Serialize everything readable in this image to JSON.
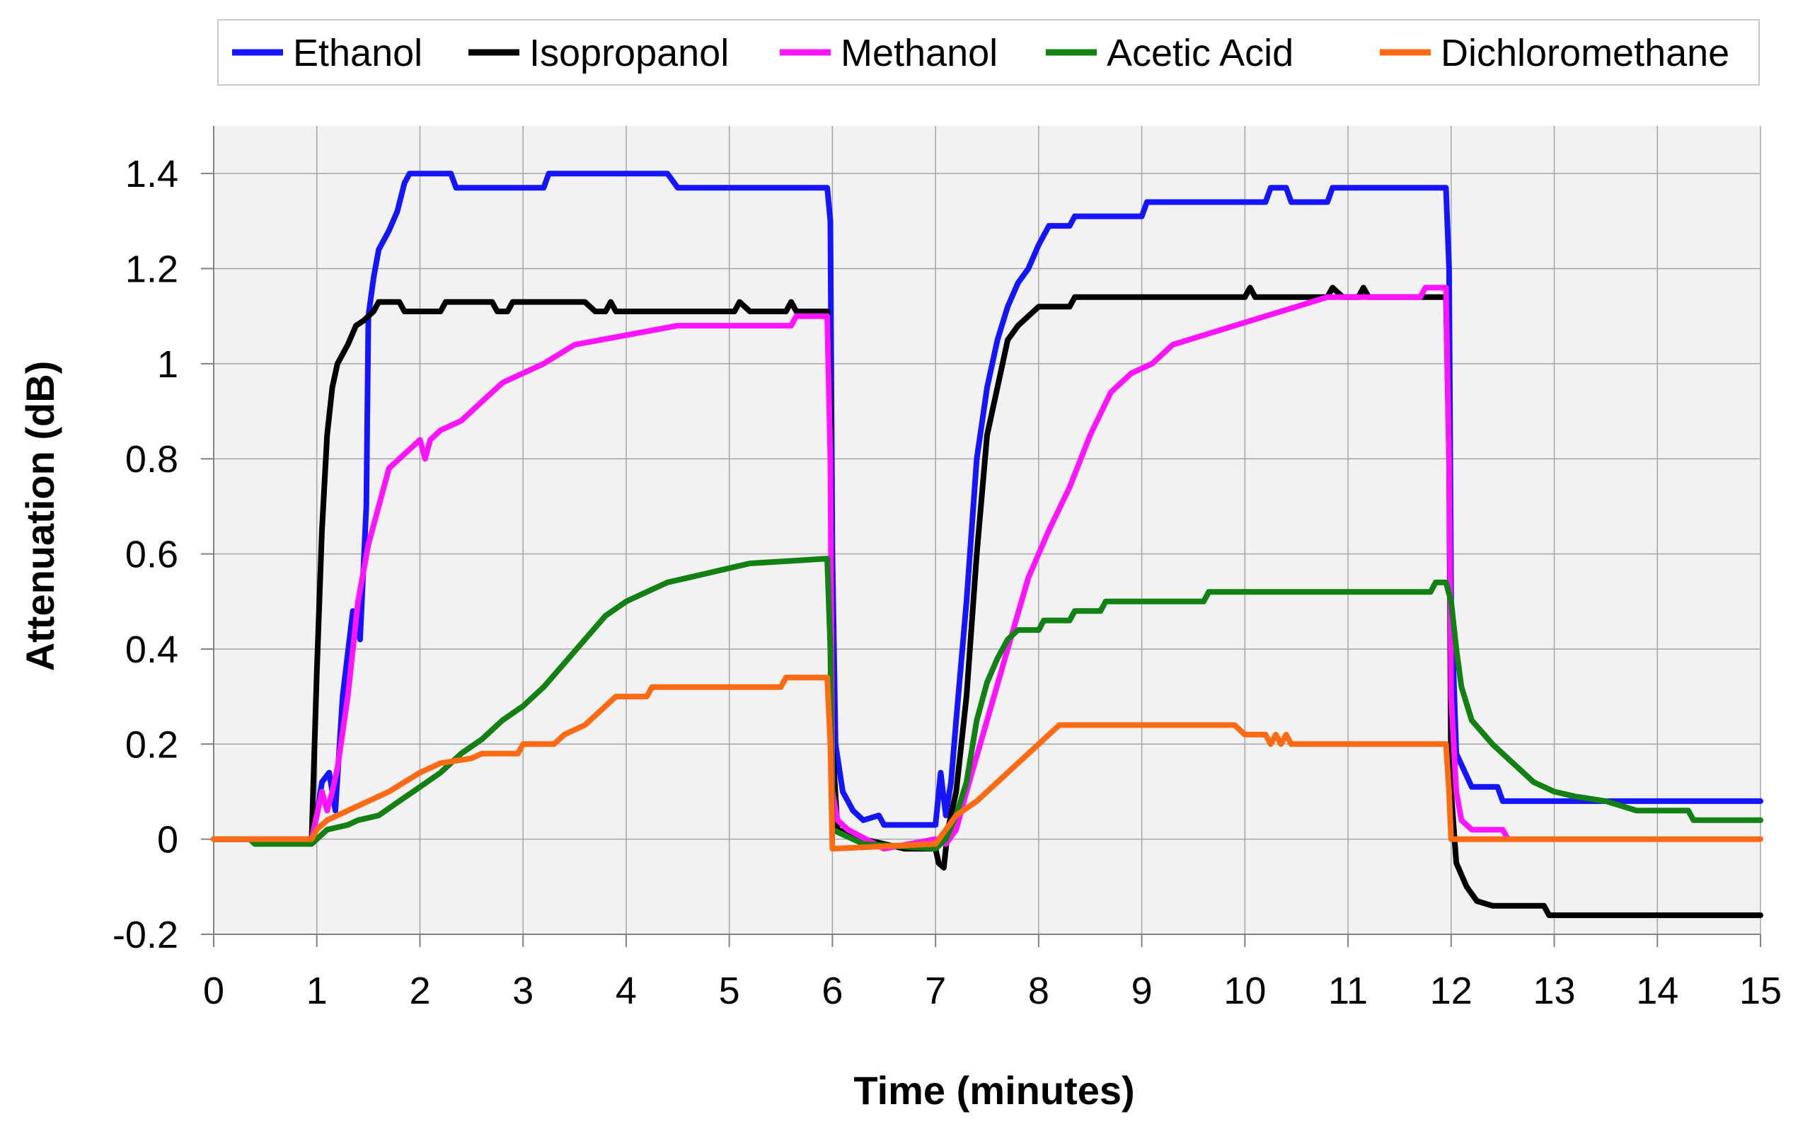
{
  "chart_data": {
    "type": "line",
    "title": "",
    "xlabel": "Time (minutes)",
    "ylabel": "Attenuation (dB)",
    "xlim": [
      0,
      15
    ],
    "ylim": [
      -0.2,
      1.5
    ],
    "x_ticks": [
      0,
      1,
      2,
      3,
      4,
      5,
      6,
      7,
      8,
      9,
      10,
      11,
      12,
      13,
      14,
      15
    ],
    "y_ticks": [
      -0.2,
      0,
      0.2,
      0.4,
      0.6,
      0.8,
      1,
      1.2,
      1.4
    ],
    "x_tick_labels": [
      "0",
      "1",
      "2",
      "3",
      "4",
      "5",
      "6",
      "7",
      "8",
      "9",
      "10",
      "11",
      "12",
      "13",
      "14",
      "15"
    ],
    "y_tick_labels": [
      "-0.2",
      "0",
      "0.2",
      "0.4",
      "0.6",
      "0.8",
      "1",
      "1.2",
      "1.4"
    ],
    "grid": true,
    "plot_background": "#f2f2f2",
    "legend_position": "top",
    "series": [
      {
        "name": "Ethanol",
        "color": "#1414ff",
        "points": [
          [
            0,
            0
          ],
          [
            0.95,
            0
          ],
          [
            1.0,
            0.05
          ],
          [
            1.05,
            0.12
          ],
          [
            1.12,
            0.14
          ],
          [
            1.18,
            0.06
          ],
          [
            1.25,
            0.3
          ],
          [
            1.35,
            0.48
          ],
          [
            1.42,
            0.42
          ],
          [
            1.48,
            0.7
          ],
          [
            1.5,
            1.1
          ],
          [
            1.55,
            1.18
          ],
          [
            1.6,
            1.24
          ],
          [
            1.7,
            1.28
          ],
          [
            1.78,
            1.32
          ],
          [
            1.85,
            1.38
          ],
          [
            1.9,
            1.4
          ],
          [
            2.3,
            1.4
          ],
          [
            2.35,
            1.37
          ],
          [
            3.2,
            1.37
          ],
          [
            3.25,
            1.4
          ],
          [
            4.4,
            1.4
          ],
          [
            4.5,
            1.37
          ],
          [
            5.95,
            1.37
          ],
          [
            5.98,
            1.3
          ],
          [
            6.0,
            0.6
          ],
          [
            6.03,
            0.2
          ],
          [
            6.1,
            0.1
          ],
          [
            6.2,
            0.06
          ],
          [
            6.3,
            0.04
          ],
          [
            6.45,
            0.05
          ],
          [
            6.5,
            0.03
          ],
          [
            7.0,
            0.03
          ],
          [
            7.05,
            0.14
          ],
          [
            7.1,
            0.05
          ],
          [
            7.15,
            0.12
          ],
          [
            7.2,
            0.25
          ],
          [
            7.3,
            0.5
          ],
          [
            7.4,
            0.8
          ],
          [
            7.5,
            0.95
          ],
          [
            7.6,
            1.05
          ],
          [
            7.7,
            1.12
          ],
          [
            7.8,
            1.17
          ],
          [
            7.9,
            1.2
          ],
          [
            8.0,
            1.25
          ],
          [
            8.1,
            1.29
          ],
          [
            8.3,
            1.29
          ],
          [
            8.35,
            1.31
          ],
          [
            9.0,
            1.31
          ],
          [
            9.05,
            1.34
          ],
          [
            10.2,
            1.34
          ],
          [
            10.25,
            1.37
          ],
          [
            10.4,
            1.37
          ],
          [
            10.45,
            1.34
          ],
          [
            10.8,
            1.34
          ],
          [
            10.85,
            1.37
          ],
          [
            11.95,
            1.37
          ],
          [
            11.98,
            1.2
          ],
          [
            12.0,
            0.5
          ],
          [
            12.05,
            0.18
          ],
          [
            12.2,
            0.11
          ],
          [
            12.45,
            0.11
          ],
          [
            12.5,
            0.08
          ],
          [
            15,
            0.08
          ]
        ]
      },
      {
        "name": "Isopropanol",
        "color": "#000000",
        "points": [
          [
            0,
            0
          ],
          [
            0.95,
            0
          ],
          [
            1.0,
            0.35
          ],
          [
            1.05,
            0.65
          ],
          [
            1.1,
            0.85
          ],
          [
            1.15,
            0.95
          ],
          [
            1.2,
            1.0
          ],
          [
            1.3,
            1.04
          ],
          [
            1.38,
            1.08
          ],
          [
            1.45,
            1.09
          ],
          [
            1.55,
            1.11
          ],
          [
            1.6,
            1.13
          ],
          [
            1.8,
            1.13
          ],
          [
            1.85,
            1.11
          ],
          [
            2.2,
            1.11
          ],
          [
            2.25,
            1.13
          ],
          [
            2.7,
            1.13
          ],
          [
            2.75,
            1.11
          ],
          [
            2.85,
            1.11
          ],
          [
            2.9,
            1.13
          ],
          [
            3.6,
            1.13
          ],
          [
            3.7,
            1.11
          ],
          [
            3.8,
            1.11
          ],
          [
            3.85,
            1.13
          ],
          [
            3.9,
            1.11
          ],
          [
            5.05,
            1.11
          ],
          [
            5.1,
            1.13
          ],
          [
            5.2,
            1.11
          ],
          [
            5.55,
            1.11
          ],
          [
            5.6,
            1.13
          ],
          [
            5.65,
            1.11
          ],
          [
            5.95,
            1.11
          ],
          [
            5.98,
            0.9
          ],
          [
            6.0,
            0.2
          ],
          [
            6.05,
            0.02
          ],
          [
            6.3,
            0.0
          ],
          [
            6.7,
            -0.02
          ],
          [
            7.0,
            -0.02
          ],
          [
            7.03,
            -0.05
          ],
          [
            7.08,
            -0.06
          ],
          [
            7.12,
            0.02
          ],
          [
            7.2,
            0.1
          ],
          [
            7.3,
            0.3
          ],
          [
            7.4,
            0.6
          ],
          [
            7.5,
            0.85
          ],
          [
            7.6,
            0.95
          ],
          [
            7.7,
            1.05
          ],
          [
            7.8,
            1.08
          ],
          [
            7.9,
            1.1
          ],
          [
            8.0,
            1.12
          ],
          [
            8.3,
            1.12
          ],
          [
            8.35,
            1.14
          ],
          [
            10.0,
            1.14
          ],
          [
            10.05,
            1.16
          ],
          [
            10.1,
            1.14
          ],
          [
            10.8,
            1.14
          ],
          [
            10.85,
            1.16
          ],
          [
            10.95,
            1.14
          ],
          [
            11.1,
            1.14
          ],
          [
            11.15,
            1.16
          ],
          [
            11.2,
            1.14
          ],
          [
            11.95,
            1.14
          ],
          [
            11.98,
            0.8
          ],
          [
            12.0,
            0.1
          ],
          [
            12.05,
            -0.05
          ],
          [
            12.15,
            -0.1
          ],
          [
            12.25,
            -0.13
          ],
          [
            12.4,
            -0.14
          ],
          [
            12.9,
            -0.14
          ],
          [
            12.95,
            -0.16
          ],
          [
            15,
            -0.16
          ]
        ]
      },
      {
        "name": "Methanol",
        "color": "#ff14ff",
        "points": [
          [
            0,
            0
          ],
          [
            0.95,
            0
          ],
          [
            1.0,
            0.05
          ],
          [
            1.05,
            0.1
          ],
          [
            1.1,
            0.06
          ],
          [
            1.15,
            0.1
          ],
          [
            1.2,
            0.15
          ],
          [
            1.3,
            0.3
          ],
          [
            1.4,
            0.5
          ],
          [
            1.5,
            0.62
          ],
          [
            1.6,
            0.7
          ],
          [
            1.7,
            0.78
          ],
          [
            1.8,
            0.8
          ],
          [
            1.9,
            0.82
          ],
          [
            2.0,
            0.84
          ],
          [
            2.05,
            0.8
          ],
          [
            2.1,
            0.84
          ],
          [
            2.2,
            0.86
          ],
          [
            2.4,
            0.88
          ],
          [
            2.6,
            0.92
          ],
          [
            2.8,
            0.96
          ],
          [
            3.0,
            0.98
          ],
          [
            3.2,
            1.0
          ],
          [
            3.5,
            1.04
          ],
          [
            4.0,
            1.06
          ],
          [
            4.5,
            1.08
          ],
          [
            5.6,
            1.08
          ],
          [
            5.65,
            1.1
          ],
          [
            5.95,
            1.1
          ],
          [
            5.98,
            0.8
          ],
          [
            6.0,
            0.1
          ],
          [
            6.05,
            0.04
          ],
          [
            6.15,
            0.02
          ],
          [
            6.5,
            -0.02
          ],
          [
            7.0,
            0.0
          ],
          [
            7.1,
            -0.01
          ],
          [
            7.2,
            0.02
          ],
          [
            7.3,
            0.1
          ],
          [
            7.5,
            0.25
          ],
          [
            7.7,
            0.4
          ],
          [
            7.9,
            0.55
          ],
          [
            8.1,
            0.65
          ],
          [
            8.3,
            0.74
          ],
          [
            8.5,
            0.85
          ],
          [
            8.7,
            0.94
          ],
          [
            8.9,
            0.98
          ],
          [
            9.1,
            1.0
          ],
          [
            9.3,
            1.04
          ],
          [
            9.6,
            1.06
          ],
          [
            9.9,
            1.08
          ],
          [
            10.2,
            1.1
          ],
          [
            10.5,
            1.12
          ],
          [
            10.8,
            1.14
          ],
          [
            11.7,
            1.14
          ],
          [
            11.75,
            1.16
          ],
          [
            11.95,
            1.16
          ],
          [
            11.98,
            0.8
          ],
          [
            12.0,
            0.3
          ],
          [
            12.05,
            0.1
          ],
          [
            12.1,
            0.04
          ],
          [
            12.2,
            0.02
          ],
          [
            12.5,
            0.02
          ],
          [
            12.55,
            0.0
          ]
        ]
      },
      {
        "name": "Acetic Acid",
        "color": "#138013",
        "points": [
          [
            0,
            0
          ],
          [
            0.35,
            0
          ],
          [
            0.4,
            -0.01
          ],
          [
            0.95,
            -0.01
          ],
          [
            1.1,
            0.02
          ],
          [
            1.3,
            0.03
          ],
          [
            1.4,
            0.04
          ],
          [
            1.6,
            0.05
          ],
          [
            1.8,
            0.08
          ],
          [
            2.0,
            0.11
          ],
          [
            2.2,
            0.14
          ],
          [
            2.4,
            0.18
          ],
          [
            2.6,
            0.21
          ],
          [
            2.8,
            0.25
          ],
          [
            3.0,
            0.28
          ],
          [
            3.2,
            0.32
          ],
          [
            3.4,
            0.37
          ],
          [
            3.6,
            0.42
          ],
          [
            3.8,
            0.47
          ],
          [
            4.0,
            0.5
          ],
          [
            4.2,
            0.52
          ],
          [
            4.4,
            0.54
          ],
          [
            4.6,
            0.55
          ],
          [
            4.8,
            0.56
          ],
          [
            5.0,
            0.57
          ],
          [
            5.2,
            0.58
          ],
          [
            5.95,
            0.59
          ],
          [
            5.98,
            0.4
          ],
          [
            6.0,
            0.02
          ],
          [
            6.3,
            -0.01
          ],
          [
            7.0,
            -0.02
          ],
          [
            7.1,
            0.0
          ],
          [
            7.2,
            0.05
          ],
          [
            7.3,
            0.12
          ],
          [
            7.4,
            0.25
          ],
          [
            7.5,
            0.33
          ],
          [
            7.6,
            0.38
          ],
          [
            7.7,
            0.42
          ],
          [
            7.8,
            0.44
          ],
          [
            8.0,
            0.44
          ],
          [
            8.05,
            0.46
          ],
          [
            8.3,
            0.46
          ],
          [
            8.35,
            0.48
          ],
          [
            8.6,
            0.48
          ],
          [
            8.65,
            0.5
          ],
          [
            9.6,
            0.5
          ],
          [
            9.65,
            0.52
          ],
          [
            11.8,
            0.52
          ],
          [
            11.85,
            0.54
          ],
          [
            11.95,
            0.54
          ],
          [
            12.0,
            0.5
          ],
          [
            12.05,
            0.4
          ],
          [
            12.1,
            0.32
          ],
          [
            12.2,
            0.25
          ],
          [
            12.4,
            0.2
          ],
          [
            12.6,
            0.16
          ],
          [
            12.8,
            0.12
          ],
          [
            13.0,
            0.1
          ],
          [
            13.2,
            0.09
          ],
          [
            13.5,
            0.08
          ],
          [
            13.8,
            0.06
          ],
          [
            14.3,
            0.06
          ],
          [
            14.35,
            0.04
          ],
          [
            15,
            0.04
          ]
        ]
      },
      {
        "name": "Dichloromethane",
        "color": "#ff6a14",
        "points": [
          [
            0,
            0
          ],
          [
            0.95,
            0
          ],
          [
            1.0,
            0.02
          ],
          [
            1.1,
            0.04
          ],
          [
            1.3,
            0.06
          ],
          [
            1.5,
            0.08
          ],
          [
            1.7,
            0.1
          ],
          [
            1.85,
            0.12
          ],
          [
            2.0,
            0.14
          ],
          [
            2.2,
            0.16
          ],
          [
            2.5,
            0.17
          ],
          [
            2.6,
            0.18
          ],
          [
            2.95,
            0.18
          ],
          [
            3.0,
            0.2
          ],
          [
            3.3,
            0.2
          ],
          [
            3.4,
            0.22
          ],
          [
            3.6,
            0.24
          ],
          [
            3.7,
            0.26
          ],
          [
            3.8,
            0.28
          ],
          [
            3.9,
            0.3
          ],
          [
            4.2,
            0.3
          ],
          [
            4.25,
            0.32
          ],
          [
            5.5,
            0.32
          ],
          [
            5.55,
            0.34
          ],
          [
            5.95,
            0.34
          ],
          [
            5.98,
            0.2
          ],
          [
            6.0,
            -0.02
          ],
          [
            7.0,
            -0.01
          ],
          [
            7.1,
            0.02
          ],
          [
            7.2,
            0.05
          ],
          [
            7.4,
            0.08
          ],
          [
            7.6,
            0.12
          ],
          [
            7.8,
            0.16
          ],
          [
            8.0,
            0.2
          ],
          [
            8.2,
            0.24
          ],
          [
            9.9,
            0.24
          ],
          [
            10.0,
            0.22
          ],
          [
            10.2,
            0.22
          ],
          [
            10.25,
            0.2
          ],
          [
            10.3,
            0.22
          ],
          [
            10.35,
            0.2
          ],
          [
            10.4,
            0.22
          ],
          [
            10.45,
            0.2
          ],
          [
            11.95,
            0.2
          ],
          [
            11.98,
            0.1
          ],
          [
            12.0,
            0.0
          ],
          [
            15,
            0.0
          ]
        ]
      }
    ]
  }
}
